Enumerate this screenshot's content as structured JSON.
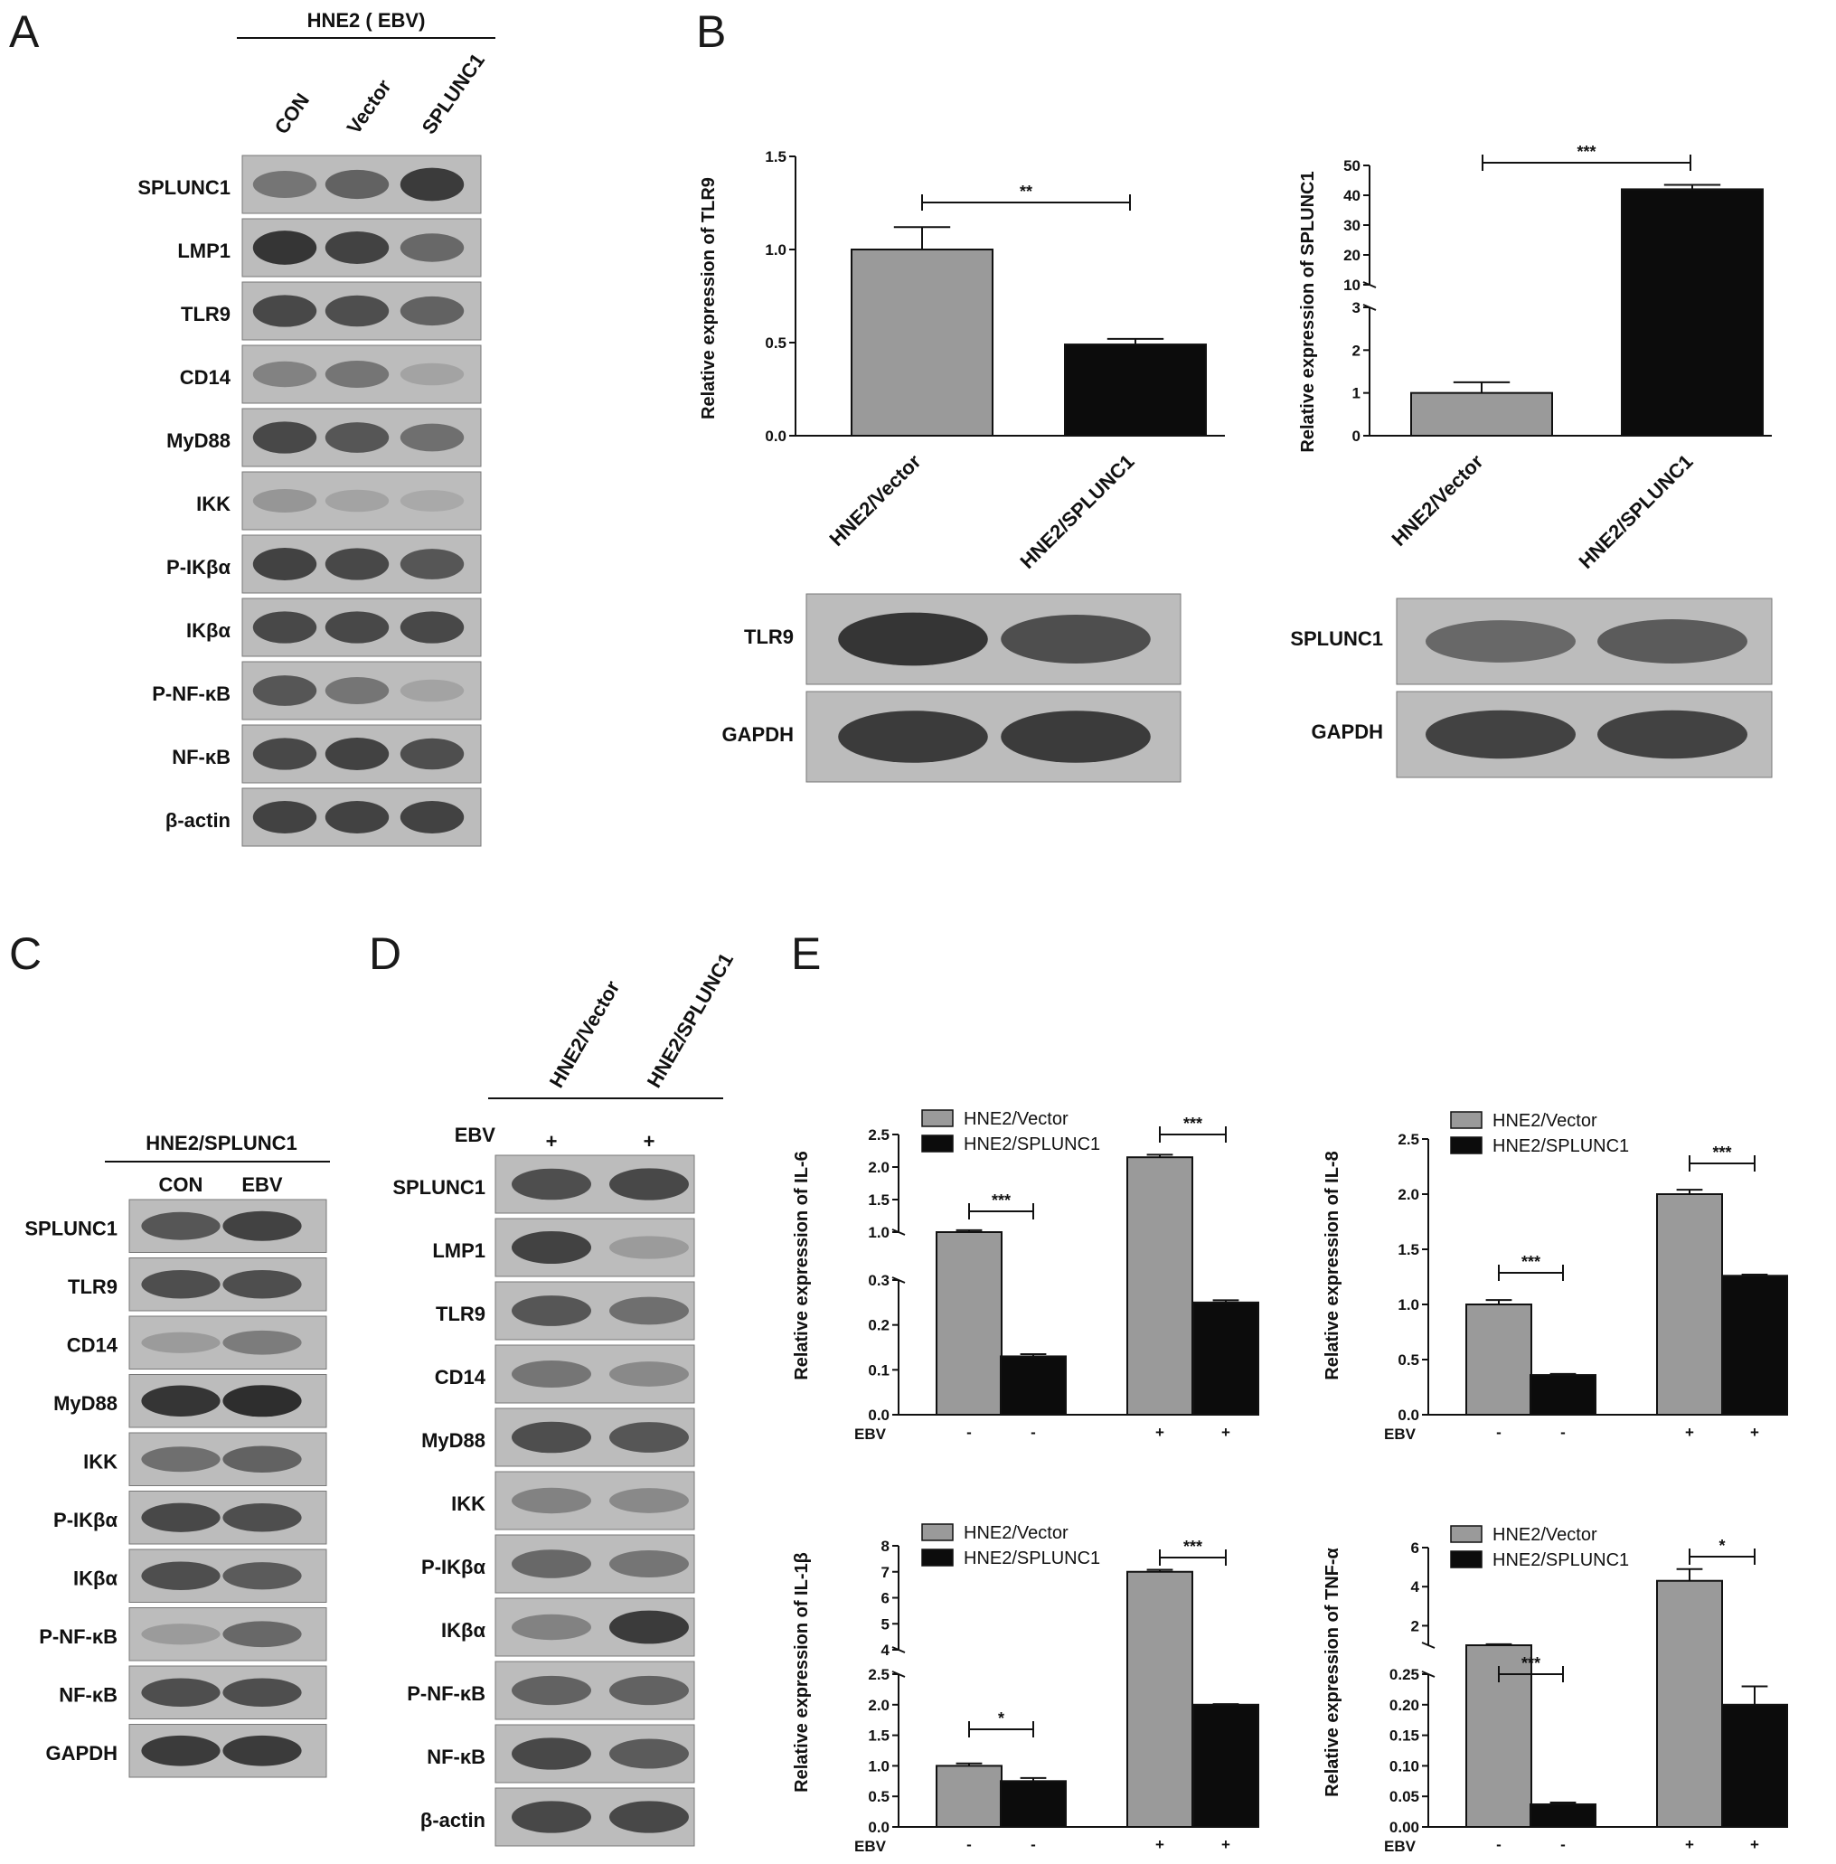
{
  "panels": [
    "A",
    "B",
    "C",
    "D",
    "E"
  ],
  "colors": {
    "vector": "#9a9a9a",
    "splunc1": "#0c0c0c",
    "blot_bg": "#bcbcbc",
    "band": "#2b2b2b"
  },
  "panelA": {
    "group": "HNE2 ( EBV)",
    "lanes": [
      "CON",
      "Vector",
      "SPLUNC1"
    ],
    "rows": [
      {
        "label": "SPLUNC1",
        "levels": [
          0.45,
          0.6,
          0.9
        ]
      },
      {
        "label": "LMP1",
        "levels": [
          0.95,
          0.85,
          0.55
        ]
      },
      {
        "label": "TLR9",
        "levels": [
          0.8,
          0.75,
          0.6
        ]
      },
      {
        "label": "CD14",
        "levels": [
          0.35,
          0.45,
          0.1
        ]
      },
      {
        "label": "MyD88",
        "levels": [
          0.8,
          0.7,
          0.5
        ]
      },
      {
        "label": "IKK",
        "levels": [
          0.2,
          0.1,
          0.05
        ]
      },
      {
        "label": "P-IKβα",
        "levels": [
          0.85,
          0.8,
          0.7
        ]
      },
      {
        "label": "IKβα",
        "levels": [
          0.8,
          0.8,
          0.8
        ]
      },
      {
        "label": "P-NF-κB",
        "levels": [
          0.7,
          0.45,
          0.1
        ]
      },
      {
        "label": "NF-κB",
        "levels": [
          0.8,
          0.85,
          0.75
        ]
      },
      {
        "label": "β-actin",
        "levels": [
          0.85,
          0.85,
          0.85
        ]
      }
    ]
  },
  "panelB": {
    "tlr9_chart": {
      "ylabel": "Relative expression of TLR9",
      "categories": [
        "HNE2/Vector",
        "HNE2/SPLUNC1"
      ],
      "yticks": [
        "0.0",
        "0.5",
        "1.0",
        "1.5"
      ],
      "significance": "**",
      "blot_rows": [
        "TLR9",
        "GAPDH"
      ]
    },
    "splunc1_chart": {
      "ylabel": "Relative expression of SPLUNC1",
      "categories": [
        "HNE2/Vector",
        "HNE2/SPLUNC1"
      ],
      "yticks_low": [
        "0",
        "1",
        "2",
        "3"
      ],
      "yticks_high": [
        "10",
        "20",
        "30",
        "40",
        "50"
      ],
      "significance": "***",
      "blot_rows": [
        "SPLUNC1",
        "GAPDH"
      ]
    }
  },
  "panelC": {
    "group": "HNE2/SPLUNC1",
    "lanes": [
      "CON",
      "EBV"
    ],
    "rows": [
      {
        "label": "SPLUNC1",
        "levels": [
          0.7,
          0.85
        ]
      },
      {
        "label": "TLR9",
        "levels": [
          0.75,
          0.75
        ]
      },
      {
        "label": "CD14",
        "levels": [
          0.15,
          0.4
        ]
      },
      {
        "label": "MyD88",
        "levels": [
          0.95,
          1.0
        ]
      },
      {
        "label": "IKK",
        "levels": [
          0.5,
          0.6
        ]
      },
      {
        "label": "P-IKβα",
        "levels": [
          0.8,
          0.75
        ]
      },
      {
        "label": "IKβα",
        "levels": [
          0.75,
          0.65
        ]
      },
      {
        "label": "P-NF-κB",
        "levels": [
          0.15,
          0.55
        ]
      },
      {
        "label": "NF-κB",
        "levels": [
          0.75,
          0.75
        ]
      },
      {
        "label": "GAPDH",
        "levels": [
          0.9,
          0.9
        ]
      }
    ]
  },
  "panelD": {
    "lanes": [
      "HNE2/Vector",
      "HNE2/SPLUNC1"
    ],
    "ebv_label": "EBV",
    "ebv_values": [
      "+",
      "+"
    ],
    "rows": [
      {
        "label": "SPLUNC1",
        "levels": [
          0.75,
          0.8
        ]
      },
      {
        "label": "LMP1",
        "levels": [
          0.85,
          0.15
        ]
      },
      {
        "label": "TLR9",
        "levels": [
          0.7,
          0.5
        ]
      },
      {
        "label": "CD14",
        "levels": [
          0.45,
          0.3
        ]
      },
      {
        "label": "MyD88",
        "levels": [
          0.75,
          0.7
        ]
      },
      {
        "label": "IKK",
        "levels": [
          0.35,
          0.3
        ]
      },
      {
        "label": "P-IKβα",
        "levels": [
          0.55,
          0.45
        ]
      },
      {
        "label": "IKβα",
        "levels": [
          0.35,
          0.9
        ]
      },
      {
        "label": "P-NF-κB",
        "levels": [
          0.6,
          0.6
        ]
      },
      {
        "label": "NF-κB",
        "levels": [
          0.8,
          0.65
        ]
      },
      {
        "label": "β-actin",
        "levels": [
          0.8,
          0.8
        ]
      }
    ]
  },
  "panelE": {
    "legend": [
      "HNE2/Vector",
      "HNE2/SPLUNC1"
    ],
    "ebv_label": "EBV",
    "ebv_values": [
      "-",
      "-",
      "+",
      "+"
    ],
    "charts": [
      {
        "ylabel": "Relative expression of IL-6",
        "low_ticks": [
          "0.0",
          "0.1",
          "0.2",
          "0.3"
        ],
        "high_ticks": [
          "1.0",
          "1.5",
          "2.0",
          "2.5"
        ],
        "sig1": "***",
        "sig2": "***"
      },
      {
        "ylabel": "Relative expression of IL-8",
        "low_ticks": [
          "0.0",
          "0.5",
          "1.0",
          "1.5",
          "2.0",
          "2.5"
        ],
        "high_ticks": [],
        "sig1": "***",
        "sig2": "***"
      },
      {
        "ylabel": "Relative expression of IL-1β",
        "low_ticks": [
          "0.0",
          "0.5",
          "1.0",
          "1.5",
          "2.0",
          "2.5"
        ],
        "high_ticks": [
          "4",
          "5",
          "6",
          "7",
          "8"
        ],
        "sig1": "*",
        "sig2": "***"
      },
      {
        "ylabel": "Relative expression of TNF-α",
        "low_ticks": [
          "0.00",
          "0.05",
          "0.10",
          "0.15",
          "0.20",
          "0.25"
        ],
        "high_ticks": [
          "2",
          "4",
          "6"
        ],
        "sig1": "***",
        "sig2": "*"
      }
    ]
  },
  "chart_data": [
    {
      "type": "bar",
      "title": "",
      "xlabel": "",
      "ylabel": "Relative expression of TLR9",
      "categories": [
        "HNE2/Vector",
        "HNE2/SPLUNC1"
      ],
      "values": [
        1.0,
        0.49
      ],
      "errors": [
        0.12,
        0.03
      ],
      "ylim": [
        0,
        1.5
      ]
    },
    {
      "type": "bar",
      "title": "",
      "xlabel": "",
      "ylabel": "Relative expression of SPLUNC1",
      "categories": [
        "HNE2/Vector",
        "HNE2/SPLUNC1"
      ],
      "values": [
        1.0,
        42.0
      ],
      "errors": [
        0.25,
        1.5
      ],
      "axis_break": [
        3,
        10
      ],
      "ylim": [
        0,
        50
      ]
    },
    {
      "type": "bar",
      "title": "",
      "xlabel": "",
      "ylabel": "Relative expression of IL-6",
      "categories": [
        "EBV -",
        "EBV +"
      ],
      "series": [
        {
          "name": "HNE2/Vector",
          "values": [
            1.0,
            2.15
          ],
          "errors": [
            0.03,
            0.04
          ]
        },
        {
          "name": "HNE2/SPLUNC1",
          "values": [
            0.13,
            0.25
          ],
          "errors": [
            0.005,
            0.005
          ]
        }
      ],
      "axis_break": [
        0.3,
        0.9
      ],
      "ylim": [
        0,
        2.5
      ]
    },
    {
      "type": "bar",
      "title": "",
      "xlabel": "",
      "ylabel": "Relative expression of IL-8",
      "categories": [
        "EBV -",
        "EBV +"
      ],
      "series": [
        {
          "name": "HNE2/Vector",
          "values": [
            1.0,
            2.0
          ],
          "errors": [
            0.04,
            0.04
          ]
        },
        {
          "name": "HNE2/SPLUNC1",
          "values": [
            0.36,
            1.26
          ],
          "errors": [
            0.01,
            0.01
          ]
        }
      ],
      "ylim": [
        0,
        2.5
      ]
    },
    {
      "type": "bar",
      "title": "",
      "xlabel": "",
      "ylabel": "Relative expression of IL-1β",
      "categories": [
        "EBV -",
        "EBV +"
      ],
      "series": [
        {
          "name": "HNE2/Vector",
          "values": [
            1.0,
            7.0
          ],
          "errors": [
            0.04,
            0.08
          ]
        },
        {
          "name": "HNE2/SPLUNC1",
          "values": [
            0.75,
            2.0
          ],
          "errors": [
            0.05,
            0.01
          ]
        }
      ],
      "axis_break": [
        2.5,
        4
      ],
      "ylim": [
        0,
        8
      ]
    },
    {
      "type": "bar",
      "title": "",
      "xlabel": "",
      "ylabel": "Relative expression of TNF-α",
      "categories": [
        "EBV -",
        "EBV +"
      ],
      "series": [
        {
          "name": "HNE2/Vector",
          "values": [
            1.0,
            4.3
          ],
          "errors": [
            0.05,
            0.6
          ]
        },
        {
          "name": "HNE2/SPLUNC1",
          "values": [
            0.037,
            0.2
          ],
          "errors": [
            0.003,
            0.03
          ]
        }
      ],
      "axis_break": [
        0.25,
        1
      ],
      "ylim": [
        0,
        6
      ]
    }
  ]
}
